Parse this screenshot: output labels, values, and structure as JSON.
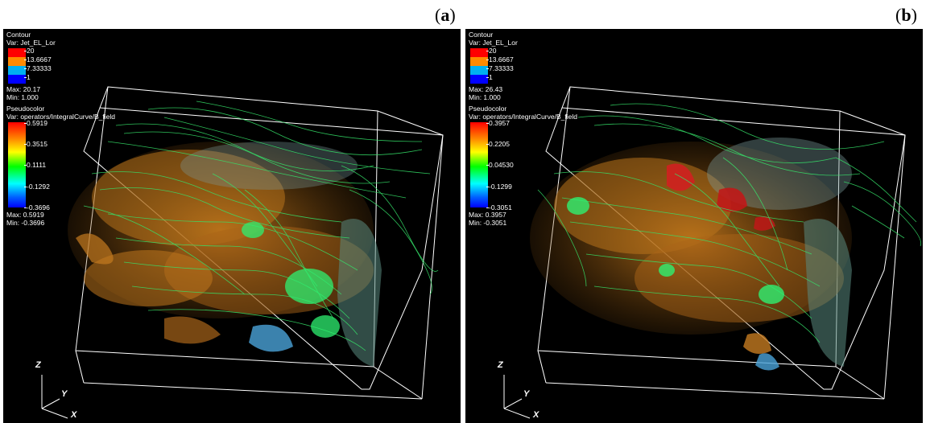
{
  "panels": [
    {
      "label": "a",
      "contour": {
        "title": "Contour",
        "var": "Var: Jet_EL_Lor",
        "levels": [
          {
            "value": "20",
            "color": "#ff0000"
          },
          {
            "value": "13.6667",
            "color": "#ff8a00"
          },
          {
            "value": "7.33333",
            "color": "#00b0f0"
          },
          {
            "value": "1",
            "color": "#0000ff"
          }
        ],
        "max": "Max: 20.17",
        "min": "Min: 1.000"
      },
      "pseudocolor": {
        "title": "Pseudocolor",
        "var": "Var: operators/IntegralCurve/B_field",
        "ticks": [
          "0.5919",
          "0.3515",
          "0.1111",
          "-0.1292",
          "-0.3696"
        ],
        "max": "Max: 0.5919",
        "min": "Min: -0.3696"
      },
      "axes": {
        "z": "Z",
        "y": "Y",
        "x": "X"
      }
    },
    {
      "label": "b",
      "contour": {
        "title": "Contour",
        "var": "Var: Jet_EL_Lor",
        "levels": [
          {
            "value": "20",
            "color": "#ff0000"
          },
          {
            "value": "13.6667",
            "color": "#ff8a00"
          },
          {
            "value": "7.33333",
            "color": "#00b0f0"
          },
          {
            "value": "1",
            "color": "#0000ff"
          }
        ],
        "max": "Max: 26.43",
        "min": "Min: 1.000"
      },
      "pseudocolor": {
        "title": "Pseudocolor",
        "var": "Var: operators/IntegralCurve/B_field",
        "ticks": [
          "0.3957",
          "0.2205",
          "0.04530",
          "-0.1299",
          "-0.3051"
        ],
        "max": "Max: 0.3957",
        "min": "Min: -0.3051"
      },
      "axes": {
        "z": "Z",
        "y": "Y",
        "x": "X"
      }
    }
  ]
}
